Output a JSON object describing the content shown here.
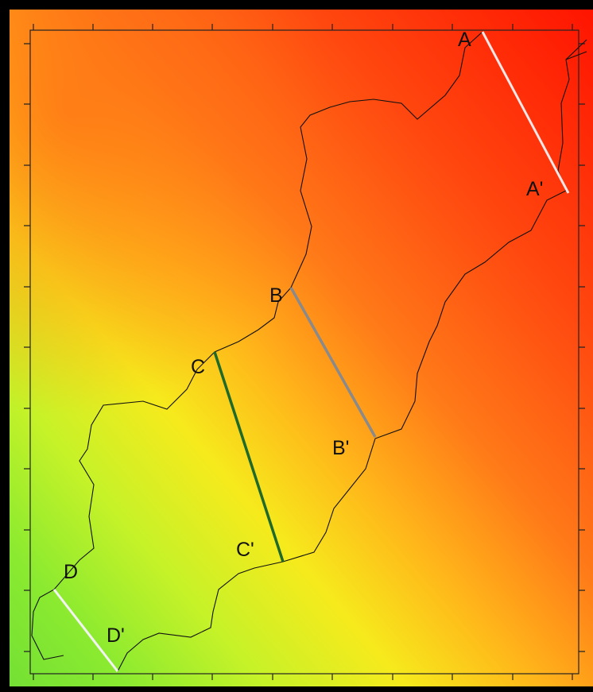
{
  "profiles": [
    {
      "start": "A",
      "end": "A'"
    },
    {
      "start": "B",
      "end": "B'"
    },
    {
      "start": "C",
      "end": "C'"
    },
    {
      "start": "D",
      "end": "D'"
    }
  ]
}
